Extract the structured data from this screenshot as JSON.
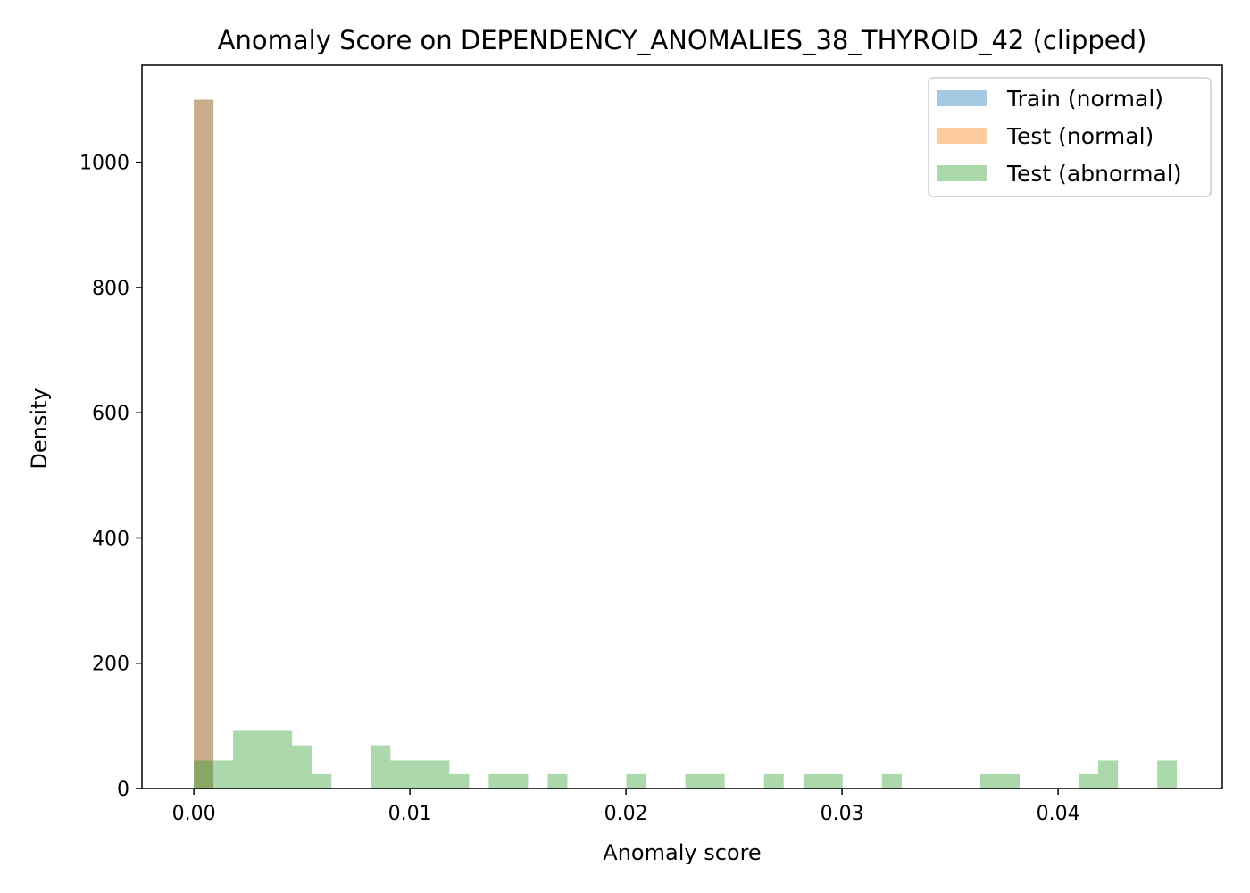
{
  "chart_data": {
    "type": "bar",
    "title": "Anomaly Score on DEPENDENCY_ANOMALIES_38_THYROID_42 (clipped)",
    "xlabel": "Anomaly score",
    "ylabel": "Density",
    "xlim": [
      -0.0024,
      0.0476
    ],
    "ylim": [
      0,
      1155
    ],
    "xticks": [
      0.0,
      0.01,
      0.02,
      0.03,
      0.04
    ],
    "xtick_labels": [
      "0.00",
      "0.01",
      "0.02",
      "0.03",
      "0.04"
    ],
    "yticks": [
      0,
      200,
      400,
      600,
      800,
      1000
    ],
    "ytick_labels": [
      "0",
      "200",
      "400",
      "600",
      "800",
      "1000"
    ],
    "grid": false,
    "legend": "top-right",
    "series": [
      {
        "name": "Train (normal)",
        "color": "#1f77b4",
        "alpha": 0.4,
        "bins": [
          {
            "x0": 0.0,
            "x1": 0.00091,
            "value": 1100
          }
        ]
      },
      {
        "name": "Test (normal)",
        "color": "#ff7f0e",
        "alpha": 0.4,
        "bins": [
          {
            "x0": 0.0,
            "x1": 0.00091,
            "value": 1100
          }
        ]
      },
      {
        "name": "Test (abnormal)",
        "color": "#2ca02c",
        "alpha": 0.4,
        "bins": [
          {
            "x0": 0.0,
            "x1": 0.00091,
            "value": 45
          },
          {
            "x0": 0.00091,
            "x1": 0.00182,
            "value": 45
          },
          {
            "x0": 0.00182,
            "x1": 0.00273,
            "value": 92
          },
          {
            "x0": 0.00273,
            "x1": 0.00364,
            "value": 92
          },
          {
            "x0": 0.00364,
            "x1": 0.00455,
            "value": 92
          },
          {
            "x0": 0.00455,
            "x1": 0.00546,
            "value": 69
          },
          {
            "x0": 0.00546,
            "x1": 0.00637,
            "value": 23
          },
          {
            "x0": 0.00819,
            "x1": 0.0091,
            "value": 69
          },
          {
            "x0": 0.0091,
            "x1": 0.01001,
            "value": 45
          },
          {
            "x0": 0.01001,
            "x1": 0.01092,
            "value": 45
          },
          {
            "x0": 0.01092,
            "x1": 0.01183,
            "value": 45
          },
          {
            "x0": 0.01183,
            "x1": 0.01274,
            "value": 23
          },
          {
            "x0": 0.01365,
            "x1": 0.01456,
            "value": 23
          },
          {
            "x0": 0.01456,
            "x1": 0.01547,
            "value": 23
          },
          {
            "x0": 0.01638,
            "x1": 0.01729,
            "value": 23
          },
          {
            "x0": 0.02002,
            "x1": 0.02093,
            "value": 23
          },
          {
            "x0": 0.02275,
            "x1": 0.02366,
            "value": 23
          },
          {
            "x0": 0.02366,
            "x1": 0.02457,
            "value": 23
          },
          {
            "x0": 0.02639,
            "x1": 0.0273,
            "value": 23
          },
          {
            "x0": 0.02821,
            "x1": 0.02912,
            "value": 23
          },
          {
            "x0": 0.02912,
            "x1": 0.03003,
            "value": 23
          },
          {
            "x0": 0.03185,
            "x1": 0.03276,
            "value": 23
          },
          {
            "x0": 0.0364,
            "x1": 0.03731,
            "value": 23
          },
          {
            "x0": 0.03731,
            "x1": 0.03822,
            "value": 23
          },
          {
            "x0": 0.04095,
            "x1": 0.04186,
            "value": 23
          },
          {
            "x0": 0.04186,
            "x1": 0.04277,
            "value": 45
          },
          {
            "x0": 0.04459,
            "x1": 0.0455,
            "value": 45
          }
        ]
      }
    ]
  }
}
